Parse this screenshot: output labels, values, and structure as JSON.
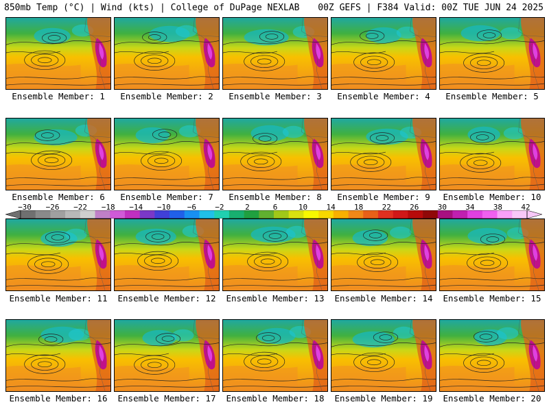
{
  "header": {
    "left": "850mb Temp (°C) | Wind (kts) | College of DuPage NEXLAB",
    "right": "00Z GEFS | F384 Valid: 00Z TUE JUN 24 2025"
  },
  "colorbar": {
    "labels": [
      "−30",
      "−26",
      "−22",
      "−18",
      "−14",
      "−10",
      "−6",
      "−2",
      "2",
      "6",
      "10",
      "14",
      "18",
      "22",
      "26",
      "30",
      "34",
      "38",
      "42"
    ],
    "colors": [
      "#707070",
      "#8a8a8a",
      "#a0a0a0",
      "#b8b8b8",
      "#cfcfcf",
      "#c080c8",
      "#d05ad8",
      "#c030c0",
      "#7a38c8",
      "#4040d8",
      "#2060e8",
      "#1890f0",
      "#20c0e8",
      "#20d0b0",
      "#18b070",
      "#20a040",
      "#60b030",
      "#a0c818",
      "#d8e010",
      "#f8f800",
      "#f8d800",
      "#f8b000",
      "#f08818",
      "#e86018",
      "#e03020",
      "#d01818",
      "#b80a0a",
      "#900808",
      "#a81080",
      "#c020b0",
      "#e040e0",
      "#f060f0",
      "#f8a0f8",
      "#f8c8f8"
    ]
  },
  "panels": [
    {
      "label": "Ensemble Member: 1"
    },
    {
      "label": "Ensemble Member: 2"
    },
    {
      "label": "Ensemble Member: 3"
    },
    {
      "label": "Ensemble Member: 4"
    },
    {
      "label": "Ensemble Member: 5"
    },
    {
      "label": "Ensemble Member: 6"
    },
    {
      "label": "Ensemble Member: 7"
    },
    {
      "label": "Ensemble Member: 8"
    },
    {
      "label": "Ensemble Member: 9"
    },
    {
      "label": "Ensemble Member: 10"
    },
    {
      "label": "Ensemble Member: 11"
    },
    {
      "label": "Ensemble Member: 12"
    },
    {
      "label": "Ensemble Member: 13"
    },
    {
      "label": "Ensemble Member: 14"
    },
    {
      "label": "Ensemble Member: 15"
    },
    {
      "label": "Ensemble Member: 16"
    },
    {
      "label": "Ensemble Member: 17"
    },
    {
      "label": "Ensemble Member: 18"
    },
    {
      "label": "Ensemble Member: 19"
    },
    {
      "label": "Ensemble Member: 20"
    }
  ]
}
